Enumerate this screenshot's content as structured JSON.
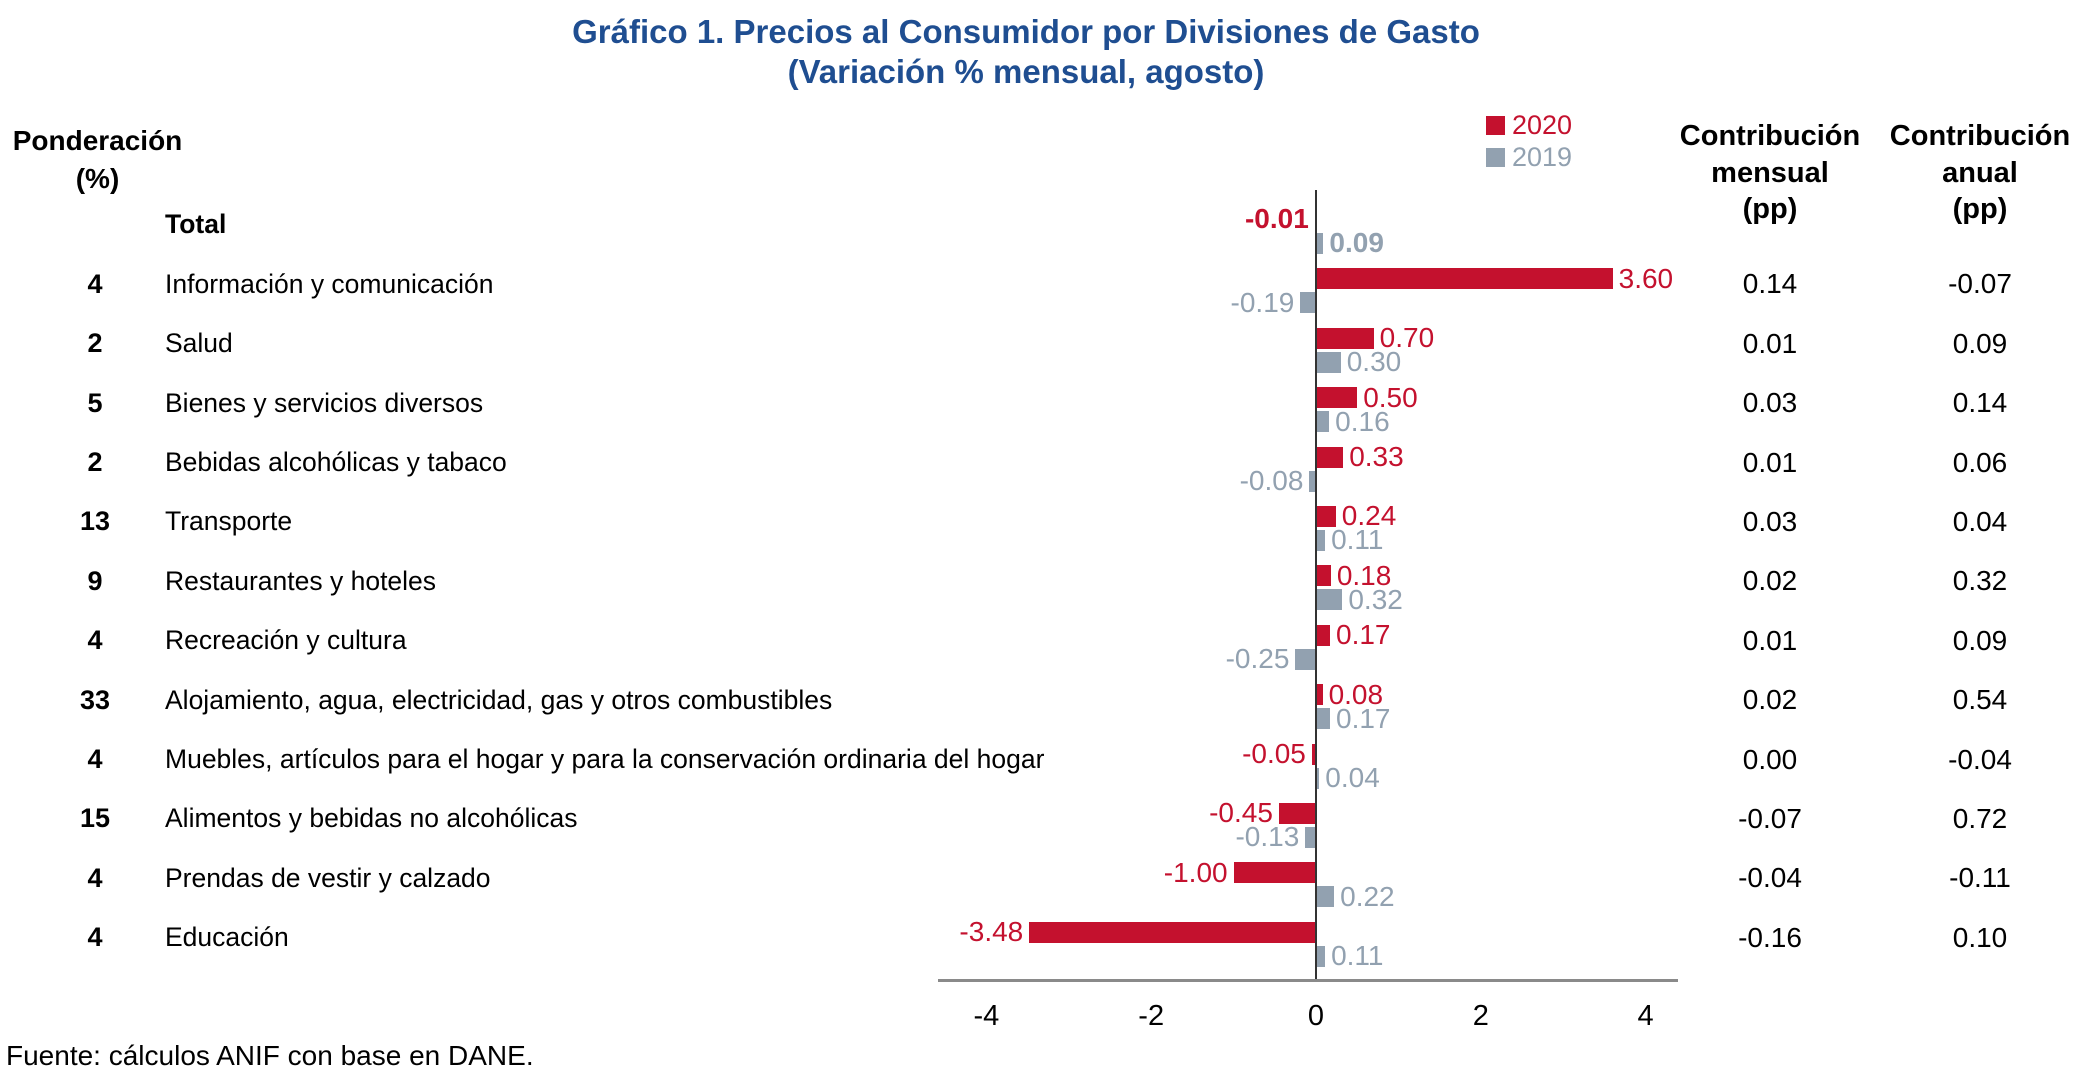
{
  "title": {
    "line1": "Gráfico 1. Precios al Consumidor por Divisiones de Gasto",
    "line2": "(Variación % mensual, agosto)",
    "color": "#1f4e91"
  },
  "left_header": {
    "line1": "Ponderación",
    "line2": "(%)"
  },
  "legend": [
    {
      "label": "2020",
      "color": "#c4112e"
    },
    {
      "label": "2019",
      "color": "#92a1b0"
    }
  ],
  "right_headers": {
    "mensual": {
      "line1": "Contribución",
      "line2": "mensual",
      "line3": "(pp)"
    },
    "anual": {
      "line1": "Contribución",
      "line2": "anual",
      "line3": "(pp)"
    }
  },
  "source": "Fuente: cálculos ANIF con base en DANE.",
  "chart_data": {
    "type": "bar",
    "orientation": "horizontal",
    "title": "Gráfico 1. Precios al Consumidor por Divisiones de Gasto (Variación % mensual, agosto)",
    "legend_position": "top-right",
    "series_names": [
      "2020",
      "2019"
    ],
    "series_colors": {
      "2020": "#c4112e",
      "2019": "#92a1b0"
    },
    "x_axis": {
      "ticks": [
        "-4",
        "-2",
        "0",
        "2",
        "4"
      ],
      "range": [
        -4.6,
        4.4
      ],
      "grid": false
    },
    "rows": [
      {
        "ponderacion": "",
        "categoria": "Total",
        "var_2020": "-0.01",
        "var_2019": "0.09",
        "contrib_mensual": "",
        "contrib_anual": "",
        "bold": true
      },
      {
        "ponderacion": "4",
        "categoria": "Información y comunicación",
        "var_2020": "3.60",
        "var_2019": "-0.19",
        "contrib_mensual": "0.14",
        "contrib_anual": "-0.07",
        "bold": false
      },
      {
        "ponderacion": "2",
        "categoria": "Salud",
        "var_2020": "0.70",
        "var_2019": "0.30",
        "contrib_mensual": "0.01",
        "contrib_anual": "0.09",
        "bold": false
      },
      {
        "ponderacion": "5",
        "categoria": "Bienes y servicios diversos",
        "var_2020": "0.50",
        "var_2019": "0.16",
        "contrib_mensual": "0.03",
        "contrib_anual": "0.14",
        "bold": false
      },
      {
        "ponderacion": "2",
        "categoria": "Bebidas alcohólicas y tabaco",
        "var_2020": "0.33",
        "var_2019": "-0.08",
        "contrib_mensual": "0.01",
        "contrib_anual": "0.06",
        "bold": false
      },
      {
        "ponderacion": "13",
        "categoria": "Transporte",
        "var_2020": "0.24",
        "var_2019": "0.11",
        "contrib_mensual": "0.03",
        "contrib_anual": "0.04",
        "bold": false
      },
      {
        "ponderacion": "9",
        "categoria": "Restaurantes y hoteles",
        "var_2020": "0.18",
        "var_2019": "0.32",
        "contrib_mensual": "0.02",
        "contrib_anual": "0.32",
        "bold": false
      },
      {
        "ponderacion": "4",
        "categoria": "Recreación y cultura",
        "var_2020": "0.17",
        "var_2019": "-0.25",
        "contrib_mensual": "0.01",
        "contrib_anual": "0.09",
        "bold": false
      },
      {
        "ponderacion": "33",
        "categoria": "Alojamiento, agua, electricidad, gas y otros combustibles",
        "var_2020": "0.08",
        "var_2019": "0.17",
        "contrib_mensual": "0.02",
        "contrib_anual": "0.54",
        "bold": false
      },
      {
        "ponderacion": "4",
        "categoria": "Muebles, artículos para el hogar y para la conservación ordinaria del hogar",
        "var_2020": "-0.05",
        "var_2019": "0.04",
        "contrib_mensual": "0.00",
        "contrib_anual": "-0.04",
        "bold": false
      },
      {
        "ponderacion": "15",
        "categoria": "Alimentos y bebidas no alcohólicas",
        "var_2020": "-0.45",
        "var_2019": "-0.13",
        "contrib_mensual": "-0.07",
        "contrib_anual": "0.72",
        "bold": false
      },
      {
        "ponderacion": "4",
        "categoria": "Prendas de vestir y calzado",
        "var_2020": "-1.00",
        "var_2019": "0.22",
        "contrib_mensual": "-0.04",
        "contrib_anual": "-0.11",
        "bold": false
      },
      {
        "ponderacion": "4",
        "categoria": "Educación",
        "var_2020": "-3.48",
        "var_2019": "0.11",
        "contrib_mensual": "-0.16",
        "contrib_anual": "0.10",
        "bold": false
      }
    ]
  }
}
